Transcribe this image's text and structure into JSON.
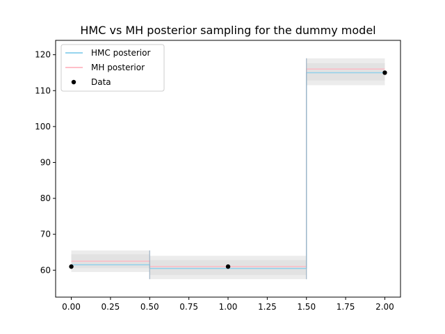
{
  "chart_data": {
    "type": "line",
    "title": "HMC vs MH posterior sampling for the dummy model",
    "xlabel": "",
    "ylabel": "",
    "xlim": [
      -0.1,
      2.1
    ],
    "ylim": [
      52.5,
      124
    ],
    "x_ticks": [
      0.0,
      0.25,
      0.5,
      0.75,
      1.0,
      1.25,
      1.5,
      1.75,
      2.0
    ],
    "x_tick_labels": [
      "0.00",
      "0.25",
      "0.50",
      "0.75",
      "1.00",
      "1.25",
      "1.50",
      "1.75",
      "2.00"
    ],
    "y_ticks": [
      60,
      70,
      80,
      90,
      100,
      110,
      120
    ],
    "y_tick_labels": [
      "60",
      "70",
      "80",
      "90",
      "100",
      "110",
      "120"
    ],
    "grid": false,
    "legend_position": "top-left",
    "series": [
      {
        "name": "HMC posterior",
        "kind": "step",
        "color": "#87ceeb",
        "segments": [
          {
            "x_start": 0.0,
            "x_end": 0.5,
            "mean": 61.5,
            "spread": [
              59.5,
              65.5
            ]
          },
          {
            "x_start": 0.5,
            "x_end": 1.5,
            "mean": 60.5,
            "spread": [
              57.5,
              64.0
            ]
          },
          {
            "x_start": 1.5,
            "x_end": 2.0,
            "mean": 115.0,
            "spread": [
              111.5,
              119.0
            ]
          }
        ]
      },
      {
        "name": "MH posterior",
        "kind": "step",
        "color": "#ffb6c1",
        "segments": [
          {
            "x_start": 0.0,
            "x_end": 0.5,
            "mean": 62.5
          },
          {
            "x_start": 0.5,
            "x_end": 1.5,
            "mean": 61.0
          },
          {
            "x_start": 1.5,
            "x_end": 2.0,
            "mean": 116.0
          }
        ]
      },
      {
        "name": "Data",
        "kind": "scatter",
        "color": "#000000",
        "x": [
          0.0,
          1.0,
          2.0
        ],
        "y": [
          61,
          61,
          115
        ]
      }
    ]
  }
}
